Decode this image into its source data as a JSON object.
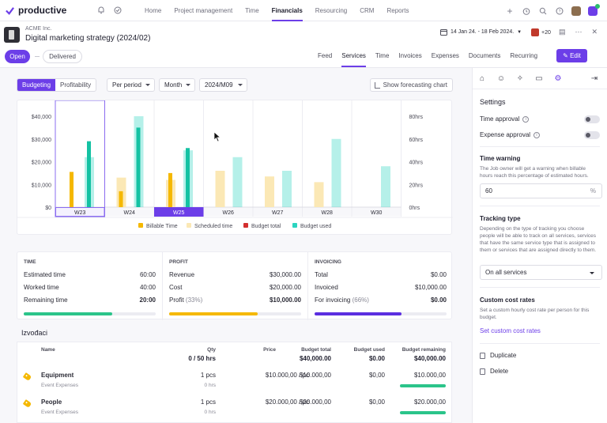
{
  "app": {
    "name": "productive"
  },
  "nav": [
    "Home",
    "Project management",
    "Time",
    "Financials",
    "Resourcing",
    "CRM",
    "Reports"
  ],
  "nav_active": 3,
  "header": {
    "client": "ACME Inc.",
    "title": "Digital marketing strategy (2024/02)",
    "date_range": "14 Jan 24. - 18 Feb 2024.",
    "people_count": "+20"
  },
  "status": {
    "open": "Open",
    "delivered": "Delivered"
  },
  "tabs": [
    "Feed",
    "Services",
    "Time",
    "Invoices",
    "Expenses",
    "Documents",
    "Recurring"
  ],
  "tabs_active": 1,
  "edit_label": "Edit",
  "toolbar": {
    "budgeting": "Budgeting",
    "profitability": "Profitability",
    "period": "Per period",
    "granularity": "Month",
    "selected_period": "2024/M09",
    "forecast": "Show forecasting chart"
  },
  "chart_data": {
    "type": "bar",
    "categories": [
      "W23",
      "W24",
      "W25",
      "W26",
      "W27",
      "W28",
      "W30"
    ],
    "selected_category": "W25",
    "y_left_ticks": [
      "$40,000",
      "$30,000",
      "$20,000",
      "$10,000",
      "$0"
    ],
    "y_right_ticks": [
      "80hrs",
      "60hrs",
      "40hrs",
      "20hrs",
      "0hrs"
    ],
    "ylim_left": [
      0,
      40000
    ],
    "ylim_right": [
      0,
      80
    ],
    "series": [
      {
        "name": "Billable Time",
        "axis": "right",
        "color": "#f5b800",
        "values": [
          31,
          14,
          30,
          null,
          null,
          null,
          null
        ]
      },
      {
        "name": "Scheduled time",
        "axis": "right",
        "color": "#fbe8b5",
        "values": [
          null,
          26,
          24,
          32,
          27,
          22,
          null
        ]
      },
      {
        "name": "Budget total",
        "axis": "left",
        "color": "#d32f2f",
        "values": [
          null,
          null,
          null,
          null,
          null,
          null,
          null
        ]
      },
      {
        "name": "Budget used",
        "axis": "left",
        "color": "#2bd4c0",
        "values": [
          22000,
          40000,
          25000,
          22000,
          16000,
          30000,
          18000
        ]
      },
      {
        "name": "Budget used (line)",
        "axis": "left",
        "color": "#14c2a3",
        "values": [
          29000,
          35000,
          26000,
          null,
          null,
          null,
          null
        ]
      }
    ],
    "legend": [
      "Billable Time",
      "Scheduled time",
      "Budget total",
      "Budget used"
    ],
    "legend_colors": [
      "#f5b800",
      "#fbe8b5",
      "#d32f2f",
      "#2bd4c0"
    ],
    "legend_position": "bottom"
  },
  "summary": {
    "time": {
      "title": "Time",
      "rows": [
        {
          "label": "Estimated time",
          "value": "60:00"
        },
        {
          "label": "Worked time",
          "value": "40:00"
        },
        {
          "label": "Remaining time",
          "value": "20:00"
        }
      ],
      "progress": 0.67,
      "color": "#2bc48a"
    },
    "profit": {
      "title": "Profit",
      "rows": [
        {
          "label": "Revenue",
          "value": "$30,000.00"
        },
        {
          "label": "Cost",
          "value": "$20,000.00"
        },
        {
          "label": "Profit",
          "sub": "(33%)",
          "value": "$10,000.00"
        }
      ],
      "progress": 0.67,
      "color": "#f5b800"
    },
    "invoicing": {
      "title": "Invoicing",
      "rows": [
        {
          "label": "Total",
          "value": "$0.00"
        },
        {
          "label": "Invoiced",
          "value": "$10,000.00"
        },
        {
          "label": "For invoicing",
          "sub": "(66%)",
          "value": "$0.00"
        }
      ],
      "progress": 0.66,
      "color": "#5b2ee0"
    }
  },
  "vendors": {
    "title": "Izvođaci",
    "headers": {
      "name": "Name",
      "qty": "Qty",
      "qty_total": "0 / 50 hrs",
      "price": "Price",
      "budget_total": "Budget total",
      "budget_total_val": "$40,000.00",
      "budget_used": "Budget used",
      "budget_used_val": "$0.00",
      "budget_remaining": "Budget remaining",
      "budget_remaining_val": "$40,000.00"
    },
    "rows": [
      {
        "name": "Equipment",
        "sub": "Event Expenses",
        "qty": "1 pcs",
        "qty_sub": "0 hrs",
        "price": "$10.000,00 / pc",
        "total": "$10.000,00",
        "used": "$0,00",
        "remaining": "$10.000,00",
        "remaining_frac": 1.0
      },
      {
        "name": "People",
        "sub": "Event Expenses",
        "qty": "1 pcs",
        "qty_sub": "0 hrs",
        "price": "$20.000,00 / pc",
        "total": "$20.000,00",
        "used": "$0,00",
        "remaining": "$20.000,00",
        "remaining_frac": 1.0
      }
    ]
  },
  "sidebar": {
    "title": "Settings",
    "time_approval": "Time approval",
    "expense_approval": "Expense approval",
    "time_warning": {
      "title": "Time warning",
      "desc": "The Job owner will get a warning when billable hours reach this percentage of estimated hours.",
      "value": "60",
      "suffix": "%"
    },
    "tracking": {
      "title": "Tracking type",
      "desc": "Depending on the type of tracking you choose people will be able to track on all services, services that have the same service type that is assigned to them or services that are assigned directly to them.",
      "value": "On all services"
    },
    "cost_rates": {
      "title": "Custom cost rates",
      "desc": "Set a custom hourly cost rate per person for this budget.",
      "link": "Set custom cost rates"
    },
    "duplicate": "Duplicate",
    "delete": "Delete"
  }
}
